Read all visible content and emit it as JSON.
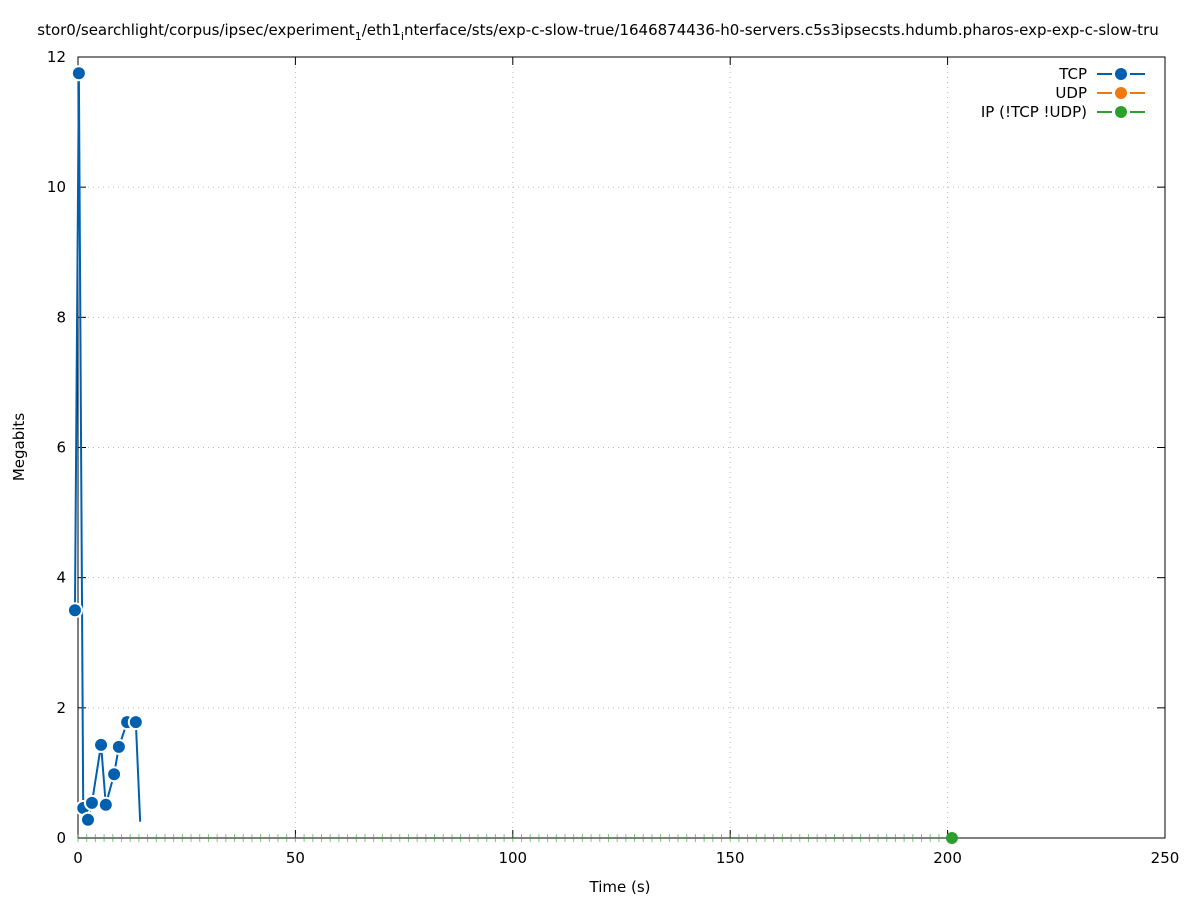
{
  "chart_data": {
    "type": "line",
    "title_parts": [
      {
        "text": "stor0/searchlight/corpus/ipsec/experiment"
      },
      {
        "text": "1",
        "sub": true
      },
      {
        "text": "/eth1"
      },
      {
        "text": "i",
        "sub": true
      },
      {
        "text": "nterface/sts/exp-c-slow-true/1646874436-h0-servers.c5s3ipsecsts.hdumb.pharos-exp-exp-c-slow-tru"
      }
    ],
    "xlabel": "Time (s)",
    "ylabel": "Megabits",
    "xlim": [
      0,
      250
    ],
    "ylim": [
      0,
      12
    ],
    "xticks": [
      0,
      50,
      100,
      150,
      200,
      250
    ],
    "yticks": [
      0,
      2,
      4,
      6,
      8,
      10,
      12
    ],
    "grid": true,
    "legend_position": "top-right",
    "series": [
      {
        "name": "TCP",
        "color": "#0060ad",
        "x": [
          -0.7,
          0.2,
          1.2,
          2.3,
          3.2,
          5.3,
          6.4,
          8.3,
          9.4,
          11.3,
          13.3,
          14.3
        ],
        "y": [
          3.5,
          11.75,
          0.46,
          0.28,
          0.54,
          1.43,
          0.51,
          0.98,
          1.4,
          1.78,
          1.78,
          0.25
        ]
      },
      {
        "name": "UDP",
        "color": "#f0780f",
        "x": [],
        "y": []
      },
      {
        "name": "IP (!TCP  !UDP)",
        "color": "#2ca02c",
        "x": [
          0,
          2,
          4,
          6,
          8,
          10,
          12,
          14,
          16,
          18,
          20,
          22,
          24,
          26,
          28,
          30,
          32,
          34,
          36,
          38,
          40,
          42,
          44,
          46,
          48,
          50,
          52,
          54,
          56,
          58,
          60,
          62,
          64,
          66,
          68,
          70,
          72,
          74,
          76,
          78,
          80,
          82,
          84,
          86,
          88,
          90,
          92,
          94,
          96,
          98,
          100,
          102,
          104,
          106,
          108,
          110,
          112,
          114,
          116,
          118,
          120,
          122,
          124,
          126,
          128,
          130,
          132,
          134,
          136,
          138,
          140,
          142,
          144,
          146,
          148,
          150,
          152,
          154,
          156,
          158,
          160,
          162,
          164,
          166,
          168,
          170,
          172,
          174,
          176,
          178,
          180,
          182,
          184,
          186,
          188,
          190,
          192,
          194,
          196,
          198,
          201
        ],
        "y": [
          0,
          0,
          0,
          0,
          0,
          0,
          0,
          0,
          0,
          0,
          0,
          0,
          0,
          0,
          0,
          0,
          0,
          0,
          0,
          0,
          0,
          0,
          0,
          0,
          0,
          0,
          0,
          0,
          0,
          0,
          0,
          0,
          0,
          0,
          0,
          0,
          0,
          0,
          0,
          0,
          0,
          0,
          0,
          0,
          0,
          0,
          0,
          0,
          0,
          0,
          0,
          0,
          0,
          0,
          0,
          0,
          0,
          0,
          0,
          0,
          0,
          0,
          0,
          0,
          0,
          0,
          0,
          0,
          0,
          0,
          0,
          0,
          0,
          0,
          0,
          0,
          0,
          0,
          0,
          0,
          0,
          0,
          0,
          0,
          0,
          0,
          0,
          0,
          0,
          0,
          0,
          0,
          0,
          0,
          0,
          0,
          0,
          0,
          0,
          0,
          0
        ]
      }
    ]
  }
}
